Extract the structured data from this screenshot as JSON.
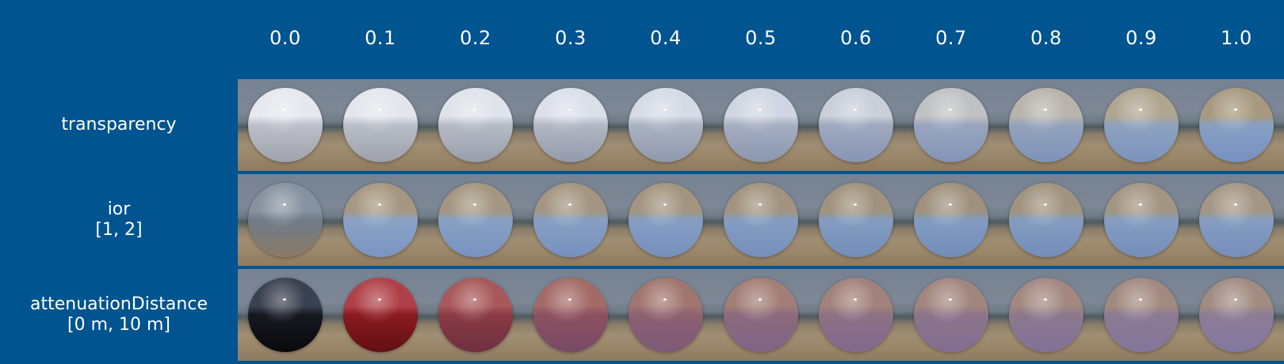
{
  "columns": [
    "0.0",
    "0.1",
    "0.2",
    "0.3",
    "0.4",
    "0.5",
    "0.6",
    "0.7",
    "0.8",
    "0.9",
    "1.0"
  ],
  "rows": [
    {
      "label_lines": [
        "transparency"
      ],
      "sphere_colors": [
        [
          "#e6e8ee",
          "#bdc0c8",
          "#9ea2ac"
        ],
        [
          "#e3e6ec",
          "#babec7",
          "#9ba0ab"
        ],
        [
          "#dfe3ea",
          "#b6bbc5",
          "#979dab"
        ],
        [
          "#dbdfe8",
          "#b1b7c3",
          "#939aab"
        ],
        [
          "#d5dae5",
          "#abb2c2",
          "#8f98ac"
        ],
        [
          "#cfd5e2",
          "#a6aec2",
          "#8b96ae"
        ],
        [
          "#c9ced8",
          "#9fa9c0",
          "#8795b2"
        ],
        [
          "#c0c1c2",
          "#98a5be",
          "#8294b6"
        ],
        [
          "#b8b4ac",
          "#93a3bd",
          "#7f93ba"
        ],
        [
          "#b0a690",
          "#8ea2bf",
          "#7b93bd"
        ],
        [
          "#a89980",
          "#879fc2",
          "#7692c2"
        ]
      ]
    },
    {
      "label_lines": [
        "ior",
        "[1, 2]"
      ],
      "sphere_colors": [
        [
          "#8792a0",
          "#6f7b88",
          "#8a7b66"
        ],
        [
          "#a69781",
          "#8aa2c4",
          "#7b95c2"
        ],
        [
          "#a49680",
          "#87a0c3",
          "#7893c0"
        ],
        [
          "#a3957f",
          "#869fc2",
          "#7791bf"
        ],
        [
          "#a2947e",
          "#859ec1",
          "#7690be"
        ],
        [
          "#a1937e",
          "#849dc0",
          "#758fbc"
        ],
        [
          "#a0927d",
          "#839cbf",
          "#748ebb"
        ],
        [
          "#9f917c",
          "#829bbf",
          "#738dba"
        ],
        [
          "#a0937f",
          "#839cbf",
          "#748dba"
        ],
        [
          "#a29582",
          "#849dc0",
          "#758ebb"
        ],
        [
          "#a39684",
          "#859dc0",
          "#768ebb"
        ]
      ]
    },
    {
      "label_lines": [
        "attenuationDistance",
        "[0 m, 10 m]"
      ],
      "sphere_colors": [
        [
          "#3a4150",
          "#151820",
          "#0a0a0c"
        ],
        [
          "#b04048",
          "#8a1a20",
          "#601014"
        ],
        [
          "#a8585a",
          "#8a3a44",
          "#6e3040"
        ],
        [
          "#a46a66",
          "#8c5060",
          "#784a66"
        ],
        [
          "#a27670",
          "#8c6070",
          "#7c5a78"
        ],
        [
          "#a27e76",
          "#8c6a7c",
          "#7e6486"
        ],
        [
          "#a2827a",
          "#8c7084",
          "#80698e"
        ],
        [
          "#a2867e",
          "#8c748a",
          "#826e94"
        ],
        [
          "#a2887f",
          "#8c788e",
          "#827298"
        ],
        [
          "#a28a80",
          "#8c7a92",
          "#82769c"
        ],
        [
          "#a28c82",
          "#8c7c96",
          "#8278a0"
        ]
      ]
    }
  ]
}
